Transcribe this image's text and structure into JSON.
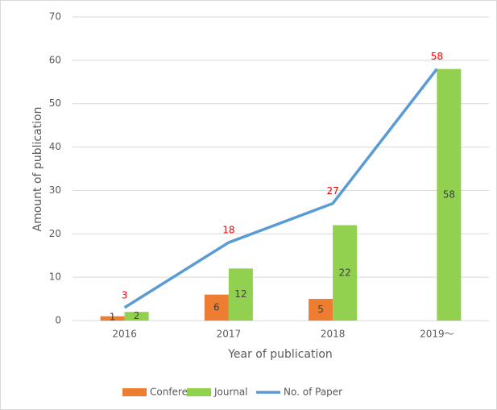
{
  "chart_data": {
    "type": "bar",
    "x_label": "Year of publication",
    "y_label": "Amount of publication",
    "categories": [
      "2016",
      "2017",
      "2018",
      "2019～"
    ],
    "series": [
      {
        "name": "Conference",
        "color": "#ed7d31",
        "values": [
          1,
          6,
          5,
          null
        ]
      },
      {
        "name": "Journal",
        "color": "#92d050",
        "values": [
          2,
          12,
          22,
          58
        ]
      },
      {
        "name": "No. of Paper",
        "type": "line",
        "color": "#5b9bd5",
        "label_color": "#ff0000",
        "values": [
          3,
          18,
          27,
          58
        ]
      }
    ],
    "ylim": [
      0,
      70
    ],
    "yticks": [
      0,
      10,
      20,
      30,
      40,
      50,
      60,
      70
    ],
    "grid": true,
    "legend": "bottom"
  }
}
